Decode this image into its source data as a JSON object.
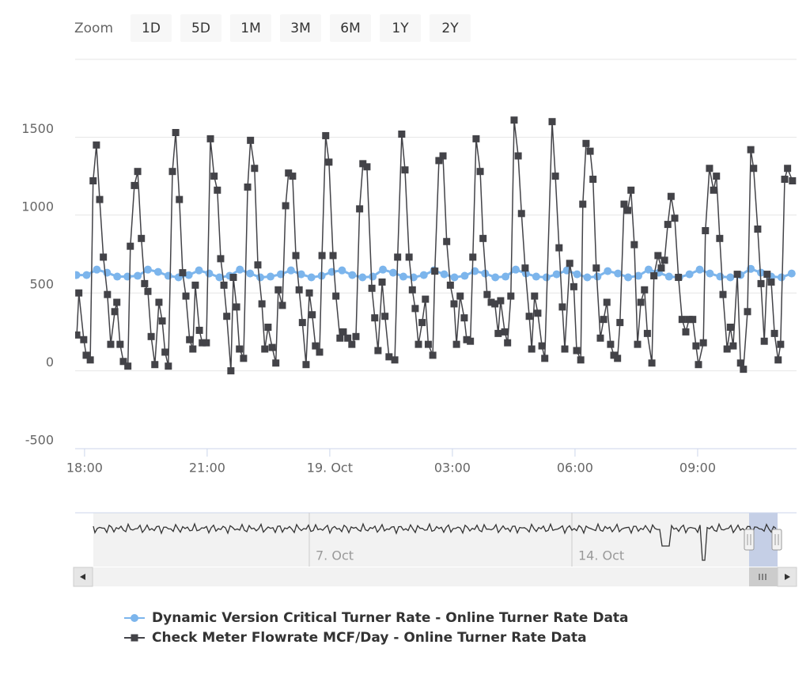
{
  "range_selector": {
    "label": "Zoom",
    "buttons": [
      "1D",
      "5D",
      "1M",
      "3M",
      "6M",
      "1Y",
      "2Y"
    ]
  },
  "navigator": {
    "labels": [
      "7. Oct",
      "14. Oct"
    ]
  },
  "chart_data": {
    "type": "line",
    "xlim": [
      17.77,
      35.42
    ],
    "xticks": [
      {
        "value": 18,
        "label": "18:00"
      },
      {
        "value": 21,
        "label": "21:00"
      },
      {
        "value": 24,
        "label": "19. Oct"
      },
      {
        "value": 27,
        "label": "03:00"
      },
      {
        "value": 30,
        "label": "06:00"
      },
      {
        "value": 33,
        "label": "09:00"
      }
    ],
    "ylim": [
      -500,
      2000
    ],
    "yticks": [
      -500,
      0,
      500,
      1000,
      1500
    ],
    "grid": true,
    "legend": "bottom",
    "series": [
      {
        "name": "Dynamic Version Critical Turner Rate - Online Turner Rate Data",
        "color": "#7cb5ec",
        "marker": "circle",
        "x": [
          17.8,
          18.05,
          18.3,
          18.55,
          18.8,
          19.05,
          19.3,
          19.55,
          19.8,
          20.05,
          20.3,
          20.55,
          20.8,
          21.05,
          21.3,
          21.55,
          21.8,
          22.05,
          22.3,
          22.55,
          22.8,
          23.05,
          23.3,
          23.55,
          23.8,
          24.05,
          24.3,
          24.55,
          24.8,
          25.05,
          25.3,
          25.55,
          25.8,
          26.05,
          26.3,
          26.55,
          26.8,
          27.05,
          27.3,
          27.55,
          27.8,
          28.05,
          28.3,
          28.55,
          28.8,
          29.05,
          29.3,
          29.55,
          29.8,
          30.05,
          30.3,
          30.55,
          30.8,
          31.05,
          31.3,
          31.55,
          31.8,
          32.05,
          32.3,
          32.55,
          32.8,
          33.05,
          33.3,
          33.55,
          33.8,
          34.05,
          34.3,
          34.55,
          34.8,
          35.05,
          35.3
        ],
        "values": [
          615,
          615,
          650,
          630,
          605,
          605,
          610,
          650,
          635,
          610,
          600,
          615,
          645,
          625,
          600,
          610,
          650,
          625,
          600,
          605,
          620,
          645,
          620,
          600,
          610,
          635,
          645,
          615,
          600,
          605,
          650,
          630,
          605,
          600,
          615,
          645,
          620,
          600,
          610,
          640,
          625,
          600,
          605,
          650,
          625,
          605,
          600,
          620,
          645,
          620,
          600,
          605,
          640,
          625,
          600,
          610,
          650,
          630,
          605,
          600,
          620,
          650,
          625,
          605,
          600,
          615,
          655,
          630,
          605,
          600,
          625
        ]
      },
      {
        "name": "Check Meter Flowrate MCF/Day - Online Turner Rate Data",
        "color": "#434348",
        "marker": "square",
        "x": [
          17.81,
          17.86,
          17.98,
          18.04,
          18.14,
          18.21,
          18.29,
          18.37,
          18.46,
          18.56,
          18.64,
          18.74,
          18.79,
          18.87,
          18.95,
          19.06,
          19.12,
          19.22,
          19.3,
          19.39,
          19.47,
          19.55,
          19.63,
          19.72,
          19.82,
          19.9,
          19.97,
          20.05,
          20.15,
          20.23,
          20.32,
          20.4,
          20.48,
          20.57,
          20.65,
          20.71,
          20.81,
          20.88,
          20.98,
          21.08,
          21.17,
          21.25,
          21.33,
          21.41,
          21.48,
          21.58,
          21.64,
          21.72,
          21.79,
          21.89,
          21.99,
          22.06,
          22.16,
          22.24,
          22.34,
          22.41,
          22.49,
          22.59,
          22.68,
          22.74,
          22.84,
          22.92,
          22.99,
          23.09,
          23.17,
          23.25,
          23.33,
          23.42,
          23.5,
          23.57,
          23.65,
          23.75,
          23.81,
          23.9,
          23.98,
          24.08,
          24.15,
          24.25,
          24.33,
          24.44,
          24.54,
          24.64,
          24.73,
          24.81,
          24.91,
          25.03,
          25.1,
          25.18,
          25.28,
          25.35,
          25.45,
          25.59,
          25.66,
          25.76,
          25.84,
          25.94,
          26.02,
          26.09,
          26.17,
          26.26,
          26.34,
          26.41,
          26.52,
          26.57,
          26.67,
          26.77,
          26.86,
          26.95,
          27.04,
          27.1,
          27.19,
          27.29,
          27.35,
          27.44,
          27.5,
          27.58,
          27.68,
          27.75,
          27.85,
          27.95,
          28.04,
          28.12,
          28.18,
          28.28,
          28.35,
          28.43,
          28.51,
          28.61,
          28.69,
          28.78,
          28.88,
          28.94,
          29.01,
          29.09,
          29.19,
          29.26,
          29.44,
          29.52,
          29.61,
          29.69,
          29.75,
          29.87,
          29.97,
          30.04,
          30.14,
          30.19,
          30.27,
          30.37,
          30.44,
          30.52,
          30.62,
          30.7,
          30.78,
          30.87,
          30.95,
          31.04,
          31.1,
          31.2,
          31.29,
          31.37,
          31.45,
          31.53,
          31.61,
          31.7,
          31.77,
          31.88,
          31.93,
          32.03,
          32.11,
          32.19,
          32.27,
          32.35,
          32.44,
          32.53,
          32.62,
          32.71,
          32.79,
          32.88,
          32.96,
          33.02,
          33.14,
          33.19,
          33.29,
          33.39,
          33.46,
          33.54,
          33.62,
          33.72,
          33.8,
          33.87,
          33.97,
          34.05,
          34.12,
          34.22,
          34.3,
          34.37,
          34.47,
          34.55,
          34.63,
          34.7,
          34.8,
          34.88,
          34.97,
          35.03,
          35.13,
          35.2,
          35.32
        ],
        "values": [
          230,
          500,
          200,
          100,
          70,
          1220,
          1450,
          1100,
          730,
          490,
          170,
          380,
          440,
          170,
          60,
          30,
          800,
          1190,
          1280,
          850,
          560,
          510,
          220,
          40,
          440,
          320,
          120,
          30,
          1280,
          1530,
          1100,
          630,
          480,
          200,
          140,
          550,
          260,
          180,
          180,
          1490,
          1250,
          1160,
          720,
          550,
          350,
          0,
          600,
          410,
          140,
          80,
          1180,
          1480,
          1300,
          680,
          430,
          140,
          280,
          150,
          50,
          520,
          420,
          1060,
          1270,
          1250,
          740,
          520,
          310,
          40,
          500,
          360,
          160,
          120,
          740,
          1510,
          1340,
          740,
          480,
          210,
          250,
          210,
          170,
          220,
          1040,
          1330,
          1310,
          530,
          340,
          130,
          570,
          350,
          90,
          70,
          730,
          1520,
          1290,
          730,
          520,
          400,
          170,
          310,
          460,
          170,
          100,
          640,
          1350,
          1380,
          830,
          550,
          430,
          170,
          480,
          340,
          200,
          190,
          730,
          1490,
          1280,
          850,
          490,
          440,
          430,
          240,
          450,
          250,
          180,
          480,
          1610,
          1380,
          1010,
          660,
          350,
          140,
          480,
          370,
          160,
          80,
          1600,
          1250,
          790,
          410,
          140,
          690,
          540,
          130,
          70,
          1070,
          1460,
          1410,
          1230,
          660,
          210,
          330,
          440,
          170,
          100,
          80,
          310,
          1070,
          1030,
          1160,
          810,
          170,
          440,
          520,
          240,
          50,
          610,
          740,
          660,
          710,
          940,
          1120,
          980,
          600,
          330,
          250,
          330,
          330,
          160,
          40,
          180,
          900,
          1300,
          1160,
          1250,
          850,
          490,
          140,
          280,
          160,
          620,
          50,
          10,
          380,
          1420,
          1300,
          910,
          560,
          190,
          620,
          570,
          240,
          70,
          170,
          1230,
          1300,
          1220
        ]
      }
    ]
  }
}
